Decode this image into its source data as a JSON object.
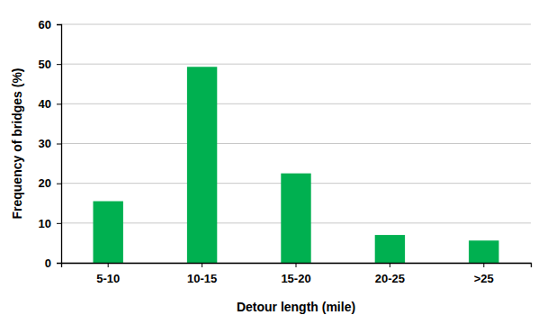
{
  "chart_data": {
    "type": "bar",
    "x_label": "Detour length (mile)",
    "y_label": "Frequency of bridges (%)",
    "categories": [
      "5-10",
      "10-15",
      "15-20",
      "20-25",
      ">25"
    ],
    "values": [
      15.5,
      49.3,
      22.5,
      7.0,
      5.6
    ],
    "color": "#00b050",
    "ylim": [
      0,
      60
    ],
    "yticks": [
      0,
      10,
      20,
      30,
      40,
      50,
      60
    ],
    "grid": true
  }
}
